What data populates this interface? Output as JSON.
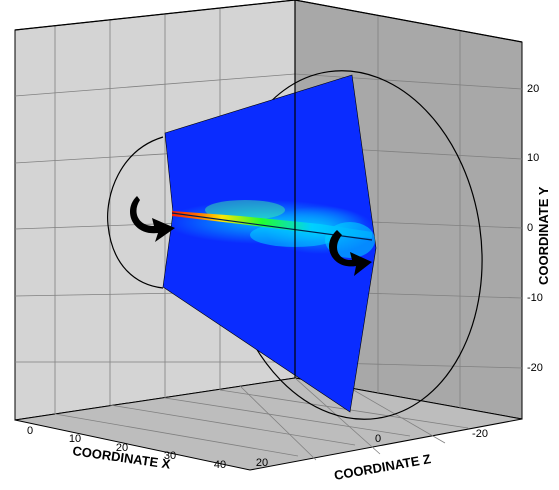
{
  "chart_data": {
    "type": "3d-contour",
    "title": "",
    "axes": {
      "x": {
        "label": "COORDINATE X",
        "ticks": [
          "0",
          "10",
          "20",
          "30",
          "40"
        ],
        "range": [
          0,
          40
        ]
      },
      "y": {
        "label": "COORDINATE Y",
        "ticks": [
          "20",
          "10",
          "0",
          "-10",
          "-20"
        ],
        "range": [
          -25,
          25
        ]
      },
      "z": {
        "label": "COORDINATE Z",
        "ticks": [
          "20",
          "0",
          "-20"
        ],
        "range": [
          -25,
          25
        ]
      }
    },
    "surface": {
      "kind": "conical jet cross-section",
      "field_colormap": [
        "#0000ff",
        "#00c8ff",
        "#00ff80",
        "#ffff00",
        "#ff0000"
      ],
      "jet_axis": "along x at y=0"
    },
    "annotations": [
      "rotation arrow (inlet)",
      "rotation arrow (outlet)"
    ],
    "colors": {
      "back_wall": "#d3d3d3",
      "right_wall": "#a9a9a9",
      "floor": "#bdbdbd",
      "surface_base": "#0a2cff"
    }
  }
}
